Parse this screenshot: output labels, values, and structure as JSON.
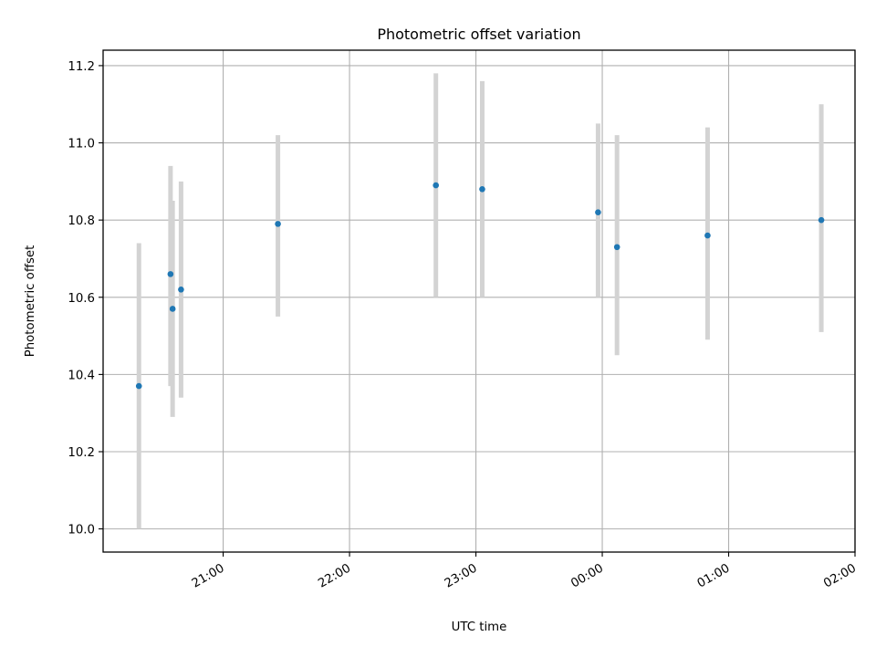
{
  "chart_data": {
    "type": "scatter",
    "title": "Photometric offset variation",
    "xlabel": "UTC time",
    "ylabel": "Photometric offset",
    "x_unit": "UTC time (hours after 20:00)",
    "x_ticks": [
      {
        "label": "21:00",
        "value": 1.0
      },
      {
        "label": "22:00",
        "value": 2.0
      },
      {
        "label": "23:00",
        "value": 3.0
      },
      {
        "label": "00:00",
        "value": 4.0
      },
      {
        "label": "01:00",
        "value": 5.0
      },
      {
        "label": "02:00",
        "value": 6.0
      }
    ],
    "xlim": [
      0.05,
      6.0
    ],
    "y_ticks": [
      "10.0",
      "10.2",
      "10.4",
      "10.6",
      "10.8",
      "11.0",
      "11.2"
    ],
    "ylim": [
      9.94,
      11.24
    ],
    "grid": true,
    "marker_color": "#1f77b4",
    "errorbar_color": "#d3d3d3",
    "points": [
      {
        "time": "20:20",
        "y": 10.37,
        "y_low": 10.0,
        "y_high": 10.74
      },
      {
        "time": "20:35",
        "y": 10.66,
        "y_low": 10.37,
        "y_high": 10.94
      },
      {
        "time": "20:36",
        "y": 10.57,
        "y_low": 10.29,
        "y_high": 10.85
      },
      {
        "time": "20:40",
        "y": 10.62,
        "y_low": 10.34,
        "y_high": 10.9
      },
      {
        "time": "21:26",
        "y": 10.79,
        "y_low": 10.55,
        "y_high": 11.02
      },
      {
        "time": "22:41",
        "y": 10.89,
        "y_low": 10.6,
        "y_high": 11.18
      },
      {
        "time": "23:03",
        "y": 10.88,
        "y_low": 10.6,
        "y_high": 11.16
      },
      {
        "time": "23:58",
        "y": 10.82,
        "y_low": 10.6,
        "y_high": 11.05
      },
      {
        "time": "00:07",
        "y": 10.73,
        "y_low": 10.45,
        "y_high": 11.02
      },
      {
        "time": "00:50",
        "y": 10.76,
        "y_low": 10.49,
        "y_high": 11.04
      },
      {
        "time": "01:44",
        "y": 10.8,
        "y_low": 10.51,
        "y_high": 11.1
      }
    ]
  }
}
